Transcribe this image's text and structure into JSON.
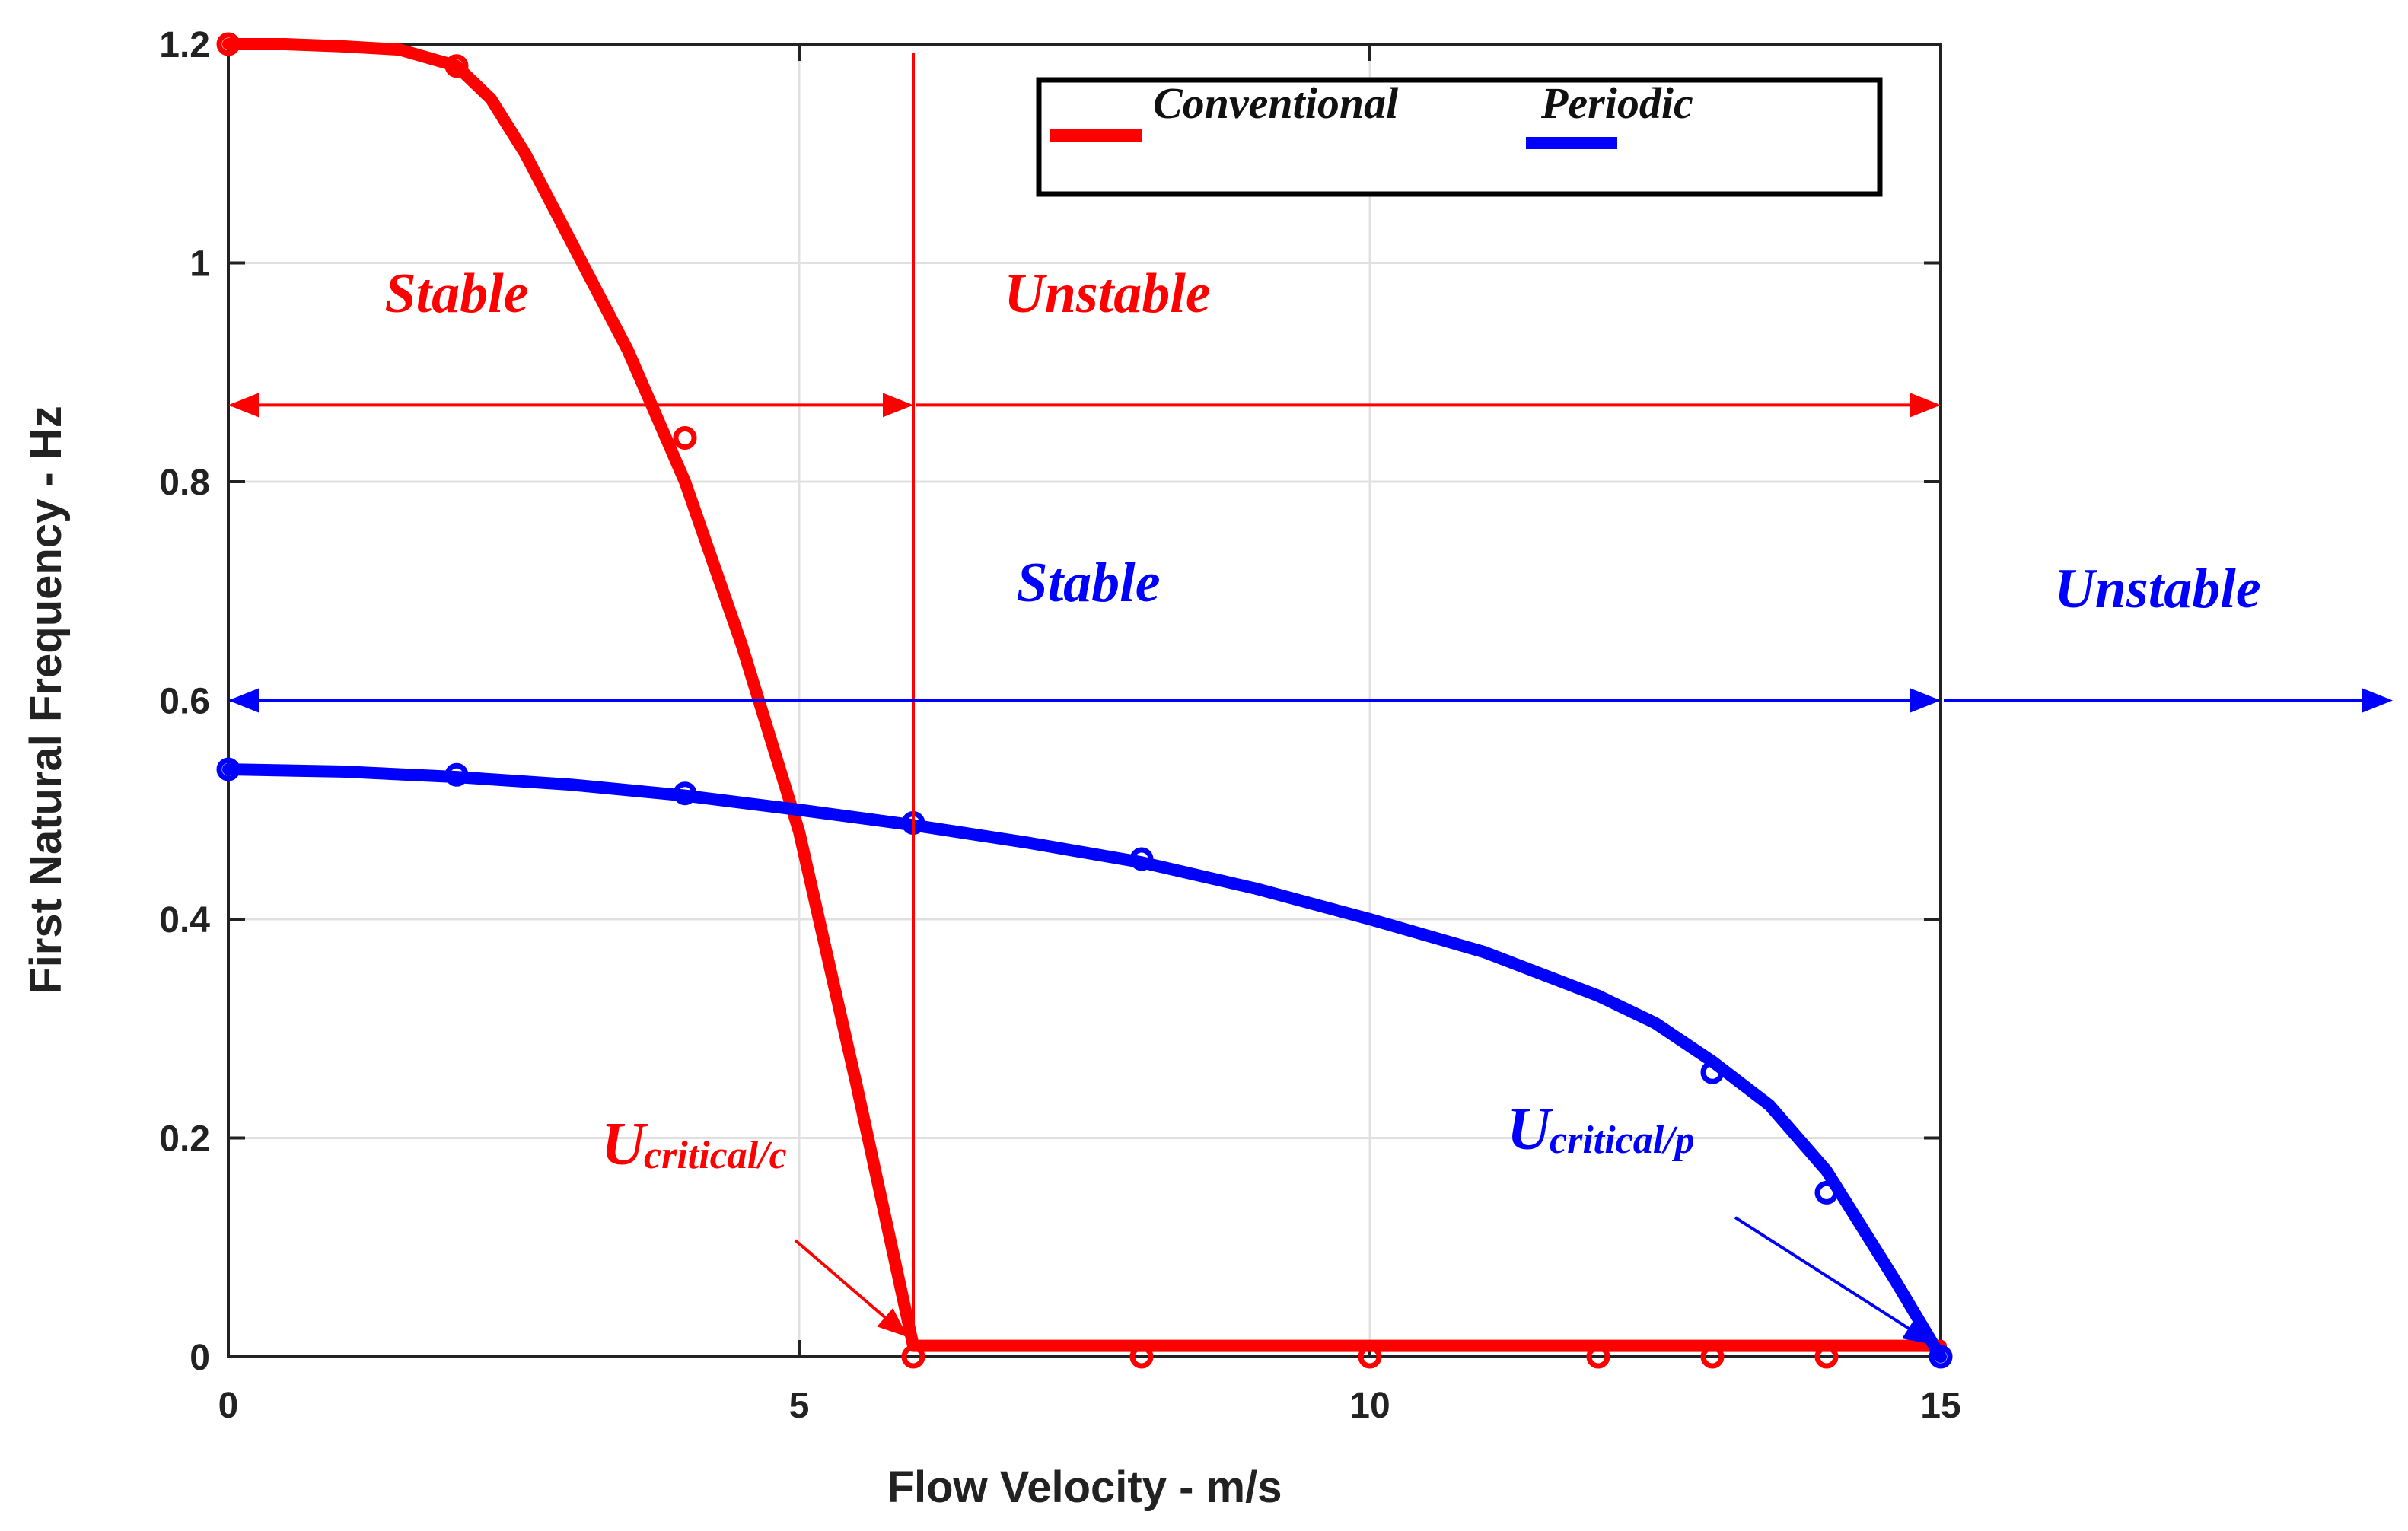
{
  "chart_data": {
    "type": "line",
    "xlabel": "Flow Velocity - m/s",
    "ylabel": "First Natural Frequency - Hz",
    "xlim": [
      0,
      15
    ],
    "ylim": [
      0,
      1.2
    ],
    "grid": true,
    "xticks": [
      0,
      5,
      10,
      15
    ],
    "xtick_labels": [
      "0",
      "5",
      "10",
      "15"
    ],
    "yticks": [
      0,
      0.2,
      0.4,
      0.6,
      0.8,
      1.0,
      1.2
    ],
    "ytick_labels": [
      "0",
      "0.2",
      "0.4",
      "0.6",
      "0.8",
      "1",
      "1.2"
    ],
    "legend_position": "top-right",
    "series": [
      {
        "name": "Conventional",
        "color": "#ff0000",
        "curve": {
          "x": [
            0,
            0.5,
            1,
            1.5,
            2,
            2.3,
            2.6,
            3,
            3.5,
            4,
            4.5,
            5,
            5.5,
            6,
            7,
            8,
            9,
            10,
            11,
            12,
            13,
            14,
            15
          ],
          "y": [
            1.2,
            1.2,
            1.198,
            1.195,
            1.18,
            1.15,
            1.1,
            1.02,
            0.92,
            0.8,
            0.65,
            0.48,
            0.25,
            0.01,
            0.01,
            0.01,
            0.01,
            0.01,
            0.01,
            0.01,
            0.01,
            0.01,
            0.01
          ]
        },
        "markers": {
          "x": [
            0,
            2,
            4,
            6,
            8,
            10,
            12,
            13,
            14
          ],
          "y": [
            1.2,
            1.18,
            0.84,
            0.0,
            0.0,
            0.0,
            0.0,
            0.0,
            0.0
          ]
        }
      },
      {
        "name": "Periodic",
        "color": "#0000ff",
        "curve": {
          "x": [
            0,
            1,
            2,
            3,
            4,
            5,
            6,
            7,
            8,
            9,
            10,
            11,
            12,
            12.5,
            13,
            13.5,
            14,
            14.3,
            14.6,
            14.8,
            15
          ],
          "y": [
            0.537,
            0.535,
            0.53,
            0.523,
            0.513,
            0.5,
            0.486,
            0.47,
            0.452,
            0.428,
            0.4,
            0.37,
            0.33,
            0.305,
            0.27,
            0.23,
            0.17,
            0.12,
            0.07,
            0.035,
            0.0
          ]
        },
        "markers": {
          "x": [
            0,
            2,
            4,
            6,
            8,
            13,
            14,
            15
          ],
          "y": [
            0.537,
            0.532,
            0.515,
            0.488,
            0.455,
            0.26,
            0.15,
            0.0
          ]
        }
      }
    ],
    "annotations": {
      "conventional_stable": "Stable",
      "conventional_unstable": "Unstable",
      "periodic_stable": "Stable",
      "periodic_unstable": "Unstable",
      "critical_conventional_main": "U",
      "critical_conventional_sub": "critical/c",
      "critical_periodic_main": "U",
      "critical_periodic_sub": "critical/p",
      "critical_velocity_conventional": 6,
      "critical_velocity_periodic": 15,
      "conventional_arrow_level": 0.87,
      "periodic_arrow_level": 0.6
    }
  }
}
